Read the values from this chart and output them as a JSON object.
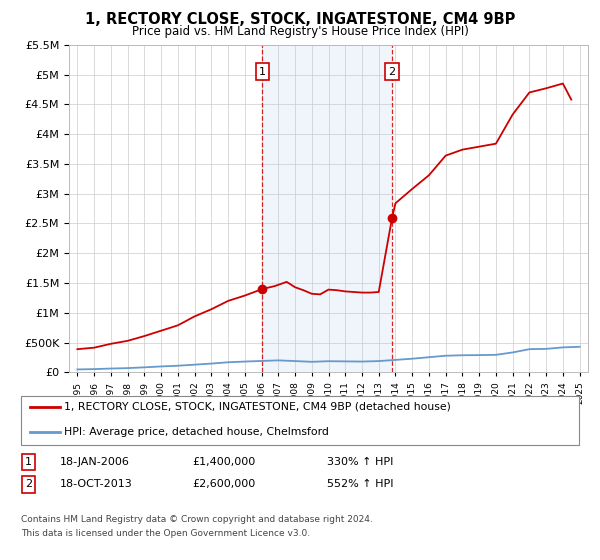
{
  "title": "1, RECTORY CLOSE, STOCK, INGATESTONE, CM4 9BP",
  "subtitle": "Price paid vs. HM Land Registry's House Price Index (HPI)",
  "red_label": "1, RECTORY CLOSE, STOCK, INGATESTONE, CM4 9BP (detached house)",
  "blue_label": "HPI: Average price, detached house, Chelmsford",
  "marker1_date": "18-JAN-2006",
  "marker1_price": "£1,400,000",
  "marker1_hpi": "330% ↑ HPI",
  "marker2_date": "18-OCT-2013",
  "marker2_price": "£2,600,000",
  "marker2_hpi": "552% ↑ HPI",
  "footnote1": "Contains HM Land Registry data © Crown copyright and database right 2024.",
  "footnote2": "This data is licensed under the Open Government Licence v3.0.",
  "marker1_x": 2006.05,
  "marker2_x": 2013.8,
  "ylim": [
    0,
    5500000
  ],
  "xlim": [
    1994.5,
    2025.5
  ],
  "background_color": "#ffffff",
  "grid_color": "#cccccc",
  "red_color": "#cc0000",
  "blue_color": "#6699cc",
  "fill_color": "#ddeeff",
  "hpi_years": [
    1995,
    1996,
    1997,
    1998,
    1999,
    2000,
    2001,
    2002,
    2003,
    2004,
    2005,
    2006,
    2007,
    2008,
    2009,
    2010,
    2011,
    2012,
    2013,
    2014,
    2015,
    2016,
    2017,
    2018,
    2019,
    2020,
    2021,
    2022,
    2023,
    2024,
    2025
  ],
  "hpi_values": [
    50000,
    55000,
    65000,
    72000,
    85000,
    100000,
    112000,
    130000,
    148000,
    170000,
    182000,
    192000,
    202000,
    190000,
    178000,
    188000,
    185000,
    182000,
    190000,
    210000,
    230000,
    255000,
    280000,
    288000,
    290000,
    295000,
    335000,
    390000,
    395000,
    420000,
    430000
  ],
  "red_years": [
    1995,
    1996,
    1997,
    1998,
    1999,
    2000,
    2001,
    2002,
    2003,
    2004,
    2005,
    2006.05,
    2006.8,
    2007.5,
    2008,
    2008.5,
    2009,
    2009.5,
    2010,
    2010.5,
    2011,
    2011.5,
    2012,
    2012.5,
    2013,
    2013.8,
    2014,
    2015,
    2016,
    2017,
    2018,
    2019,
    2020,
    2021,
    2022,
    2023,
    2024,
    2024.5
  ],
  "red_values": [
    390000,
    415000,
    480000,
    530000,
    610000,
    700000,
    790000,
    940000,
    1060000,
    1200000,
    1290000,
    1400000,
    1450000,
    1520000,
    1430000,
    1380000,
    1320000,
    1310000,
    1390000,
    1380000,
    1360000,
    1350000,
    1340000,
    1340000,
    1350000,
    2600000,
    2840000,
    3080000,
    3310000,
    3640000,
    3740000,
    3790000,
    3840000,
    4330000,
    4700000,
    4770000,
    4850000,
    4580000
  ]
}
